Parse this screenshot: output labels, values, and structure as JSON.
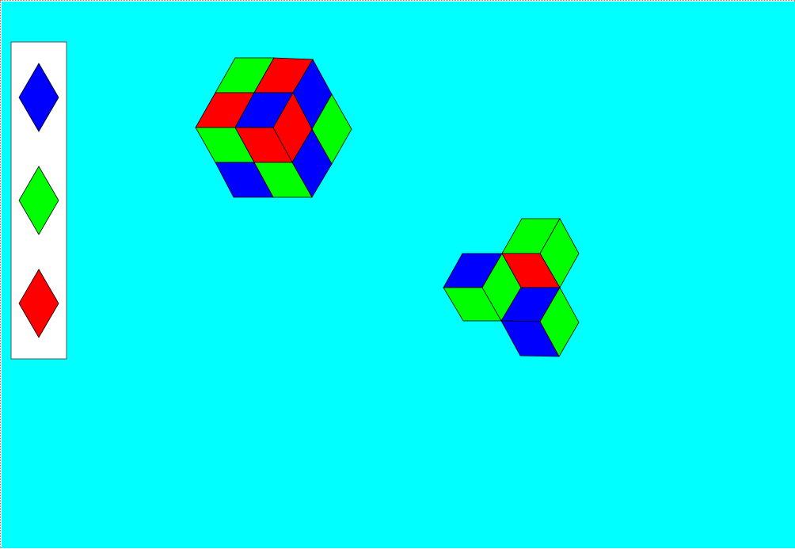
{
  "background_color": "#00ffff",
  "palette": {
    "title": "",
    "items": [
      {
        "id": "blue",
        "color": "#0000ff",
        "icon": "rhombus-tall-icon"
      },
      {
        "id": "green",
        "color": "#00ff00",
        "icon": "rhombus-tall-icon"
      },
      {
        "id": "red",
        "color": "#ff0000",
        "icon": "rhombus-tall-icon"
      }
    ]
  },
  "pieces": [
    {
      "group": "cluster-1",
      "color": "#00ff00"
    },
    {
      "group": "cluster-1",
      "color": "#ff0000"
    },
    {
      "group": "cluster-1",
      "color": "#ff0000"
    },
    {
      "group": "cluster-1",
      "color": "#0000ff"
    },
    {
      "group": "cluster-1",
      "color": "#00ff00"
    },
    {
      "group": "cluster-1",
      "color": "#ff0000"
    },
    {
      "group": "cluster-1",
      "color": "#0000ff"
    },
    {
      "group": "cluster-1",
      "color": "#ff0000"
    },
    {
      "group": "cluster-1",
      "color": "#00ff00"
    },
    {
      "group": "cluster-1",
      "color": "#0000ff"
    },
    {
      "group": "cluster-1",
      "color": "#00ff00"
    },
    {
      "group": "cluster-1",
      "color": "#0000ff"
    },
    {
      "group": "cluster-2",
      "color": "#00ff00"
    },
    {
      "group": "cluster-2",
      "color": "#00ff00"
    },
    {
      "group": "cluster-2",
      "color": "#0000ff"
    },
    {
      "group": "cluster-2",
      "color": "#00ff00"
    },
    {
      "group": "cluster-2",
      "color": "#ff0000"
    },
    {
      "group": "cluster-2",
      "color": "#00ff00"
    },
    {
      "group": "cluster-2",
      "color": "#0000ff"
    },
    {
      "group": "cluster-2",
      "color": "#00ff00"
    },
    {
      "group": "cluster-2",
      "color": "#0000ff"
    }
  ]
}
